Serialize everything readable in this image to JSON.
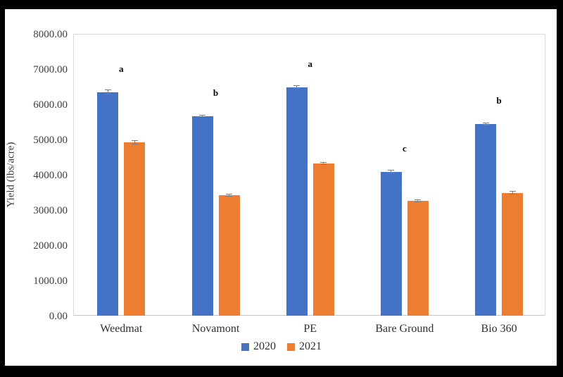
{
  "chart_data": {
    "type": "bar",
    "title": "",
    "xlabel": "",
    "ylabel": "Yield (lbs/acre)",
    "ylim": [
      0,
      8000
    ],
    "y_tick_step": 1000,
    "y_tick_labels": [
      "0.00",
      "1000.00",
      "2000.00",
      "3000.00",
      "4000.00",
      "5000.00",
      "6000.00",
      "7000.00",
      "8000.00"
    ],
    "categories": [
      "Weedmat",
      "Novamont",
      "PE",
      "Bare Ground",
      "Bio 360"
    ],
    "series": [
      {
        "name": "2020",
        "color": "#4472C4",
        "values": [
          6350,
          5670,
          6490,
          4090,
          5440
        ],
        "errors": [
          70,
          35,
          55,
          45,
          45
        ]
      },
      {
        "name": "2021",
        "color": "#ED7D31",
        "values": [
          4930,
          3420,
          4320,
          3270,
          3490
        ],
        "errors": [
          60,
          45,
          45,
          40,
          45
        ]
      }
    ],
    "significance_letters": [
      "a",
      "b",
      "a",
      "c",
      "b"
    ],
    "legend_position": "bottom",
    "grid": false
  },
  "colors": {
    "series_2020": "#4472C4",
    "series_2021": "#ED7D31",
    "error_bar": "#7f7f7f",
    "plot_border": "#D9D9D9",
    "text": "#3d3d3d",
    "frame": "#000000"
  }
}
